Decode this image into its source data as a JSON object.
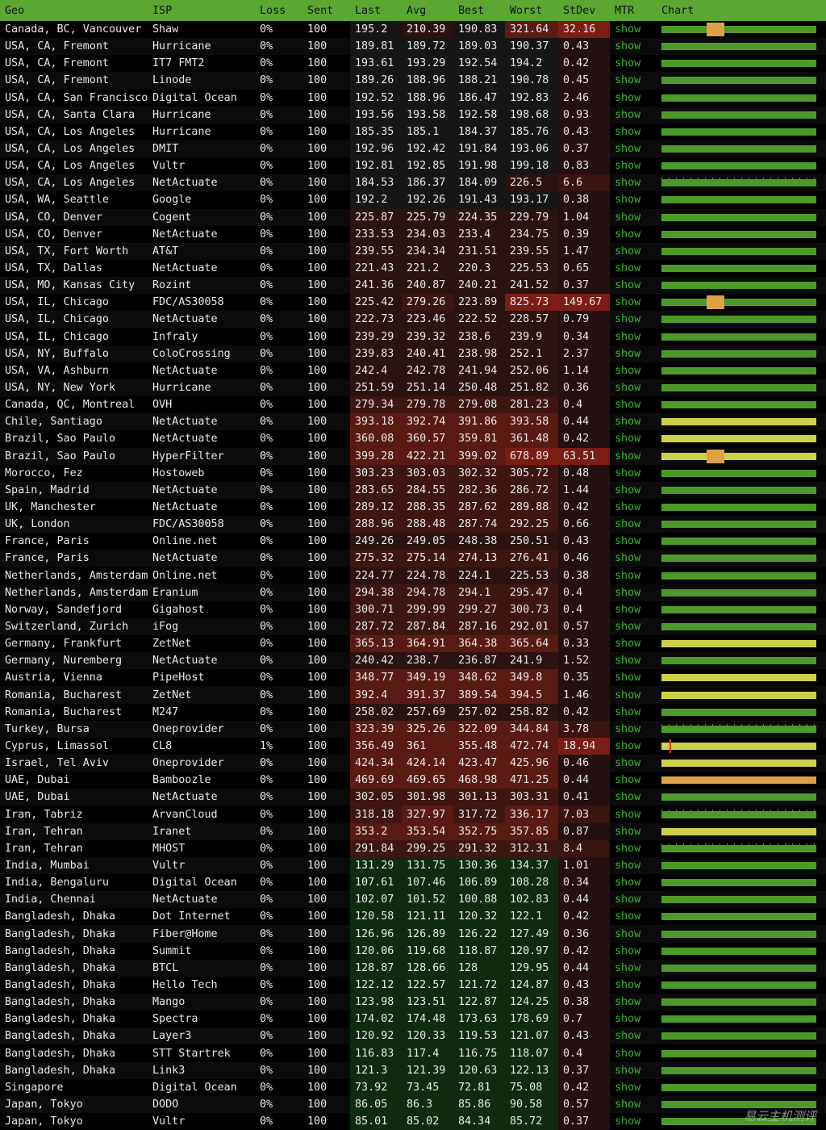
{
  "colors": {
    "header_bg": "#5aa832",
    "bar_green": "#4c9a2a",
    "bar_yellow": "#ccd14a",
    "bar_orange": "#e0a048",
    "mtr_link": "#35b82c"
  },
  "headers": [
    "Geo",
    "ISP",
    "Loss",
    "Sent",
    "Last",
    "Avg",
    "Best",
    "Worst",
    "StDev",
    "MTR",
    "Chart"
  ],
  "mtr_label": "show",
  "watermark": "易云主机测评",
  "rows": [
    {
      "geo": "Canada, BC, Vancouver",
      "isp": "Shaw",
      "loss": "0%",
      "sent": "100",
      "last": "195.2",
      "avg": "210.39",
      "best": "190.83",
      "worst": "321.64",
      "stdev": "32.16",
      "bar": "green"
    },
    {
      "geo": "USA, CA, Fremont",
      "isp": "Hurricane",
      "loss": "0%",
      "sent": "100",
      "last": "189.81",
      "avg": "189.72",
      "best": "189.03",
      "worst": "190.37",
      "stdev": "0.43",
      "bar": "green"
    },
    {
      "geo": "USA, CA, Fremont",
      "isp": "IT7 FMT2",
      "loss": "0%",
      "sent": "100",
      "last": "193.61",
      "avg": "193.29",
      "best": "192.54",
      "worst": "194.2",
      "stdev": "0.42",
      "bar": "green"
    },
    {
      "geo": "USA, CA, Fremont",
      "isp": "Linode",
      "loss": "0%",
      "sent": "100",
      "last": "189.26",
      "avg": "188.96",
      "best": "188.21",
      "worst": "190.78",
      "stdev": "0.45",
      "bar": "green"
    },
    {
      "geo": "USA, CA, San Francisco",
      "isp": "Digital Ocean",
      "loss": "0%",
      "sent": "100",
      "last": "192.52",
      "avg": "188.96",
      "best": "186.47",
      "worst": "192.83",
      "stdev": "2.46",
      "bar": "green"
    },
    {
      "geo": "USA, CA, Santa Clara",
      "isp": "Hurricane",
      "loss": "0%",
      "sent": "100",
      "last": "193.56",
      "avg": "193.58",
      "best": "192.58",
      "worst": "198.68",
      "stdev": "0.93",
      "bar": "green"
    },
    {
      "geo": "USA, CA, Los Angeles",
      "isp": "Hurricane",
      "loss": "0%",
      "sent": "100",
      "last": "185.35",
      "avg": "185.1",
      "best": "184.37",
      "worst": "185.76",
      "stdev": "0.43",
      "bar": "green"
    },
    {
      "geo": "USA, CA, Los Angeles",
      "isp": "DMIT",
      "loss": "0%",
      "sent": "100",
      "last": "192.96",
      "avg": "192.42",
      "best": "191.84",
      "worst": "193.06",
      "stdev": "0.37",
      "bar": "green"
    },
    {
      "geo": "USA, CA, Los Angeles",
      "isp": "Vultr",
      "loss": "0%",
      "sent": "100",
      "last": "192.81",
      "avg": "192.85",
      "best": "191.98",
      "worst": "199.18",
      "stdev": "0.83",
      "bar": "green"
    },
    {
      "geo": "USA, CA, Los Angeles",
      "isp": "NetActuate",
      "loss": "0%",
      "sent": "100",
      "last": "184.53",
      "avg": "186.37",
      "best": "184.09",
      "worst": "226.5",
      "stdev": "6.6",
      "bar": "green"
    },
    {
      "geo": "USA, WA, Seattle",
      "isp": "Google",
      "loss": "0%",
      "sent": "100",
      "last": "192.2",
      "avg": "192.26",
      "best": "191.43",
      "worst": "193.17",
      "stdev": "0.38",
      "bar": "green"
    },
    {
      "geo": "USA, CO, Denver",
      "isp": "Cogent",
      "loss": "0%",
      "sent": "100",
      "last": "225.87",
      "avg": "225.79",
      "best": "224.35",
      "worst": "229.79",
      "stdev": "1.04",
      "bar": "green"
    },
    {
      "geo": "USA, CO, Denver",
      "isp": "NetActuate",
      "loss": "0%",
      "sent": "100",
      "last": "233.53",
      "avg": "234.03",
      "best": "233.4",
      "worst": "234.75",
      "stdev": "0.39",
      "bar": "green"
    },
    {
      "geo": "USA, TX, Fort Worth",
      "isp": "AT&T",
      "loss": "0%",
      "sent": "100",
      "last": "239.55",
      "avg": "234.34",
      "best": "231.51",
      "worst": "239.55",
      "stdev": "1.47",
      "bar": "green"
    },
    {
      "geo": "USA, TX, Dallas",
      "isp": "NetActuate",
      "loss": "0%",
      "sent": "100",
      "last": "221.43",
      "avg": "221.2",
      "best": "220.3",
      "worst": "225.53",
      "stdev": "0.65",
      "bar": "green"
    },
    {
      "geo": "USA, MO, Kansas City",
      "isp": "Rozint",
      "loss": "0%",
      "sent": "100",
      "last": "241.36",
      "avg": "240.87",
      "best": "240.21",
      "worst": "241.52",
      "stdev": "0.37",
      "bar": "green"
    },
    {
      "geo": "USA, IL, Chicago",
      "isp": "FDC/AS30058",
      "loss": "0%",
      "sent": "100",
      "last": "225.42",
      "avg": "279.26",
      "best": "223.89",
      "worst": "825.73",
      "stdev": "149.67",
      "bar": "green"
    },
    {
      "geo": "USA, IL, Chicago",
      "isp": "NetActuate",
      "loss": "0%",
      "sent": "100",
      "last": "222.73",
      "avg": "223.46",
      "best": "222.52",
      "worst": "228.57",
      "stdev": "0.79",
      "bar": "green"
    },
    {
      "geo": "USA, IL, Chicago",
      "isp": "Infraly",
      "loss": "0%",
      "sent": "100",
      "last": "239.29",
      "avg": "239.32",
      "best": "238.6",
      "worst": "239.9",
      "stdev": "0.34",
      "bar": "green"
    },
    {
      "geo": "USA, NY, Buffalo",
      "isp": "ColoCrossing",
      "loss": "0%",
      "sent": "100",
      "last": "239.83",
      "avg": "240.41",
      "best": "238.98",
      "worst": "252.1",
      "stdev": "2.37",
      "bar": "green"
    },
    {
      "geo": "USA, VA, Ashburn",
      "isp": "NetActuate",
      "loss": "0%",
      "sent": "100",
      "last": "242.4",
      "avg": "242.78",
      "best": "241.94",
      "worst": "252.06",
      "stdev": "1.14",
      "bar": "green"
    },
    {
      "geo": "USA, NY, New York",
      "isp": "Hurricane",
      "loss": "0%",
      "sent": "100",
      "last": "251.59",
      "avg": "251.14",
      "best": "250.48",
      "worst": "251.82",
      "stdev": "0.36",
      "bar": "green"
    },
    {
      "geo": "Canada, QC, Montreal",
      "isp": "OVH",
      "loss": "0%",
      "sent": "100",
      "last": "279.34",
      "avg": "279.78",
      "best": "279.08",
      "worst": "281.23",
      "stdev": "0.4",
      "bar": "green"
    },
    {
      "geo": "Chile, Santiago",
      "isp": "NetActuate",
      "loss": "0%",
      "sent": "100",
      "last": "393.18",
      "avg": "392.74",
      "best": "391.86",
      "worst": "393.58",
      "stdev": "0.44",
      "bar": "yellow"
    },
    {
      "geo": "Brazil, Sao Paulo",
      "isp": "NetActuate",
      "loss": "0%",
      "sent": "100",
      "last": "360.08",
      "avg": "360.57",
      "best": "359.81",
      "worst": "361.48",
      "stdev": "0.42",
      "bar": "yellow"
    },
    {
      "geo": "Brazil, Sao Paulo",
      "isp": "HyperFilter",
      "loss": "0%",
      "sent": "100",
      "last": "399.28",
      "avg": "422.21",
      "best": "399.02",
      "worst": "678.89",
      "stdev": "63.51",
      "bar": "yellow"
    },
    {
      "geo": "Morocco, Fez",
      "isp": "Hostoweb",
      "loss": "0%",
      "sent": "100",
      "last": "303.23",
      "avg": "303.03",
      "best": "302.32",
      "worst": "305.72",
      "stdev": "0.48",
      "bar": "green"
    },
    {
      "geo": "Spain, Madrid",
      "isp": "NetActuate",
      "loss": "0%",
      "sent": "100",
      "last": "283.65",
      "avg": "284.55",
      "best": "282.36",
      "worst": "286.72",
      "stdev": "1.44",
      "bar": "green"
    },
    {
      "geo": "UK, Manchester",
      "isp": "NetActuate",
      "loss": "0%",
      "sent": "100",
      "last": "289.12",
      "avg": "288.35",
      "best": "287.62",
      "worst": "289.88",
      "stdev": "0.42",
      "bar": "green"
    },
    {
      "geo": "UK, London",
      "isp": "FDC/AS30058",
      "loss": "0%",
      "sent": "100",
      "last": "288.96",
      "avg": "288.48",
      "best": "287.74",
      "worst": "292.25",
      "stdev": "0.66",
      "bar": "green"
    },
    {
      "geo": "France, Paris",
      "isp": "Online.net",
      "loss": "0%",
      "sent": "100",
      "last": "249.26",
      "avg": "249.05",
      "best": "248.38",
      "worst": "250.51",
      "stdev": "0.43",
      "bar": "green"
    },
    {
      "geo": "France, Paris",
      "isp": "NetActuate",
      "loss": "0%",
      "sent": "100",
      "last": "275.32",
      "avg": "275.14",
      "best": "274.13",
      "worst": "276.41",
      "stdev": "0.46",
      "bar": "green"
    },
    {
      "geo": "Netherlands, Amsterdam",
      "isp": "Online.net",
      "loss": "0%",
      "sent": "100",
      "last": "224.77",
      "avg": "224.78",
      "best": "224.1",
      "worst": "225.53",
      "stdev": "0.38",
      "bar": "green"
    },
    {
      "geo": "Netherlands, Amsterdam",
      "isp": "Eranium",
      "loss": "0%",
      "sent": "100",
      "last": "294.38",
      "avg": "294.78",
      "best": "294.1",
      "worst": "295.47",
      "stdev": "0.4",
      "bar": "green"
    },
    {
      "geo": "Norway, Sandefjord",
      "isp": "Gigahost",
      "loss": "0%",
      "sent": "100",
      "last": "300.71",
      "avg": "299.99",
      "best": "299.27",
      "worst": "300.73",
      "stdev": "0.4",
      "bar": "green"
    },
    {
      "geo": "Switzerland, Zurich",
      "isp": "iFog",
      "loss": "0%",
      "sent": "100",
      "last": "287.72",
      "avg": "287.84",
      "best": "287.16",
      "worst": "292.01",
      "stdev": "0.57",
      "bar": "green"
    },
    {
      "geo": "Germany, Frankfurt",
      "isp": "ZetNet",
      "loss": "0%",
      "sent": "100",
      "last": "365.13",
      "avg": "364.91",
      "best": "364.38",
      "worst": "365.64",
      "stdev": "0.33",
      "bar": "yellow"
    },
    {
      "geo": "Germany, Nuremberg",
      "isp": "NetActuate",
      "loss": "0%",
      "sent": "100",
      "last": "240.42",
      "avg": "238.7",
      "best": "236.87",
      "worst": "241.9",
      "stdev": "1.52",
      "bar": "green"
    },
    {
      "geo": "Austria, Vienna",
      "isp": "PipeHost",
      "loss": "0%",
      "sent": "100",
      "last": "348.77",
      "avg": "349.19",
      "best": "348.62",
      "worst": "349.8",
      "stdev": "0.35",
      "bar": "yellow"
    },
    {
      "geo": "Romania, Bucharest",
      "isp": "ZetNet",
      "loss": "0%",
      "sent": "100",
      "last": "392.4",
      "avg": "391.37",
      "best": "389.54",
      "worst": "394.5",
      "stdev": "1.46",
      "bar": "yellow"
    },
    {
      "geo": "Romania, Bucharest",
      "isp": "M247",
      "loss": "0%",
      "sent": "100",
      "last": "258.02",
      "avg": "257.69",
      "best": "257.02",
      "worst": "258.82",
      "stdev": "0.42",
      "bar": "green"
    },
    {
      "geo": "Turkey, Bursa",
      "isp": "Oneprovider",
      "loss": "0%",
      "sent": "100",
      "last": "323.39",
      "avg": "325.26",
      "best": "322.09",
      "worst": "344.84",
      "stdev": "3.78",
      "bar": "green"
    },
    {
      "geo": "Cyprus, Limassol",
      "isp": "CL8",
      "loss": "1%",
      "sent": "100",
      "last": "356.49",
      "avg": "361",
      "best": "355.48",
      "worst": "472.74",
      "stdev": "18.94",
      "bar": "yellow"
    },
    {
      "geo": "Israel, Tel Aviv",
      "isp": "Oneprovider",
      "loss": "0%",
      "sent": "100",
      "last": "424.34",
      "avg": "424.14",
      "best": "423.47",
      "worst": "425.96",
      "stdev": "0.46",
      "bar": "yellow"
    },
    {
      "geo": "UAE, Dubai",
      "isp": "Bamboozle",
      "loss": "0%",
      "sent": "100",
      "last": "469.69",
      "avg": "469.65",
      "best": "468.98",
      "worst": "471.25",
      "stdev": "0.44",
      "bar": "orange"
    },
    {
      "geo": "UAE, Dubai",
      "isp": "NetActuate",
      "loss": "0%",
      "sent": "100",
      "last": "302.05",
      "avg": "301.98",
      "best": "301.13",
      "worst": "303.31",
      "stdev": "0.41",
      "bar": "green"
    },
    {
      "geo": "Iran, Tabriz",
      "isp": "ArvanCloud",
      "loss": "0%",
      "sent": "100",
      "last": "318.18",
      "avg": "327.97",
      "best": "317.72",
      "worst": "336.17",
      "stdev": "7.03",
      "bar": "green"
    },
    {
      "geo": "Iran, Tehran",
      "isp": "Iranet",
      "loss": "0%",
      "sent": "100",
      "last": "353.2",
      "avg": "353.54",
      "best": "352.75",
      "worst": "357.85",
      "stdev": "0.87",
      "bar": "yellow"
    },
    {
      "geo": "Iran, Tehran",
      "isp": "MHOST",
      "loss": "0%",
      "sent": "100",
      "last": "291.84",
      "avg": "299.25",
      "best": "291.32",
      "worst": "312.31",
      "stdev": "8.4",
      "bar": "green"
    },
    {
      "geo": "India, Mumbai",
      "isp": "Vultr",
      "loss": "0%",
      "sent": "100",
      "last": "131.29",
      "avg": "131.75",
      "best": "130.36",
      "worst": "134.37",
      "stdev": "1.01",
      "bar": "green"
    },
    {
      "geo": "India, Bengaluru",
      "isp": "Digital Ocean",
      "loss": "0%",
      "sent": "100",
      "last": "107.61",
      "avg": "107.46",
      "best": "106.89",
      "worst": "108.28",
      "stdev": "0.34",
      "bar": "green"
    },
    {
      "geo": "India, Chennai",
      "isp": "NetActuate",
      "loss": "0%",
      "sent": "100",
      "last": "102.07",
      "avg": "101.52",
      "best": "100.88",
      "worst": "102.83",
      "stdev": "0.44",
      "bar": "green"
    },
    {
      "geo": "Bangladesh, Dhaka",
      "isp": "Dot Internet",
      "loss": "0%",
      "sent": "100",
      "last": "120.58",
      "avg": "121.11",
      "best": "120.32",
      "worst": "122.1",
      "stdev": "0.42",
      "bar": "green"
    },
    {
      "geo": "Bangladesh, Dhaka",
      "isp": "Fiber@Home",
      "loss": "0%",
      "sent": "100",
      "last": "126.96",
      "avg": "126.89",
      "best": "126.22",
      "worst": "127.49",
      "stdev": "0.36",
      "bar": "green"
    },
    {
      "geo": "Bangladesh, Dhaka",
      "isp": "Summit",
      "loss": "0%",
      "sent": "100",
      "last": "120.06",
      "avg": "119.68",
      "best": "118.87",
      "worst": "120.97",
      "stdev": "0.42",
      "bar": "green"
    },
    {
      "geo": "Bangladesh, Dhaka",
      "isp": "BTCL",
      "loss": "0%",
      "sent": "100",
      "last": "128.87",
      "avg": "128.66",
      "best": "128",
      "worst": "129.95",
      "stdev": "0.44",
      "bar": "green"
    },
    {
      "geo": "Bangladesh, Dhaka",
      "isp": "Hello Tech",
      "loss": "0%",
      "sent": "100",
      "last": "122.12",
      "avg": "122.57",
      "best": "121.72",
      "worst": "124.87",
      "stdev": "0.43",
      "bar": "green"
    },
    {
      "geo": "Bangladesh, Dhaka",
      "isp": "Mango",
      "loss": "0%",
      "sent": "100",
      "last": "123.98",
      "avg": "123.51",
      "best": "122.87",
      "worst": "124.25",
      "stdev": "0.38",
      "bar": "green"
    },
    {
      "geo": "Bangladesh, Dhaka",
      "isp": "Spectra",
      "loss": "0%",
      "sent": "100",
      "last": "174.02",
      "avg": "174.48",
      "best": "173.63",
      "worst": "178.69",
      "stdev": "0.7",
      "bar": "green"
    },
    {
      "geo": "Bangladesh, Dhaka",
      "isp": "Layer3",
      "loss": "0%",
      "sent": "100",
      "last": "120.92",
      "avg": "120.33",
      "best": "119.53",
      "worst": "121.07",
      "stdev": "0.43",
      "bar": "green"
    },
    {
      "geo": "Bangladesh, Dhaka",
      "isp": "STT Startrek",
      "loss": "0%",
      "sent": "100",
      "last": "116.83",
      "avg": "117.4",
      "best": "116.75",
      "worst": "118.07",
      "stdev": "0.4",
      "bar": "green"
    },
    {
      "geo": "Bangladesh, Dhaka",
      "isp": "Link3",
      "loss": "0%",
      "sent": "100",
      "last": "121.3",
      "avg": "121.39",
      "best": "120.63",
      "worst": "122.13",
      "stdev": "0.37",
      "bar": "green"
    },
    {
      "geo": "Singapore",
      "isp": "Digital Ocean",
      "loss": "0%",
      "sent": "100",
      "last": "73.92",
      "avg": "73.45",
      "best": "72.81",
      "worst": "75.08",
      "stdev": "0.42",
      "bar": "green"
    },
    {
      "geo": "Japan, Tokyo",
      "isp": "DODO",
      "loss": "0%",
      "sent": "100",
      "last": "86.05",
      "avg": "86.3",
      "best": "85.86",
      "worst": "90.58",
      "stdev": "0.57",
      "bar": "green"
    },
    {
      "geo": "Japan, Tokyo",
      "isp": "Vultr",
      "loss": "0%",
      "sent": "100",
      "last": "85.01",
      "avg": "85.02",
      "best": "84.34",
      "worst": "85.72",
      "stdev": "0.37",
      "bar": "green"
    }
  ]
}
